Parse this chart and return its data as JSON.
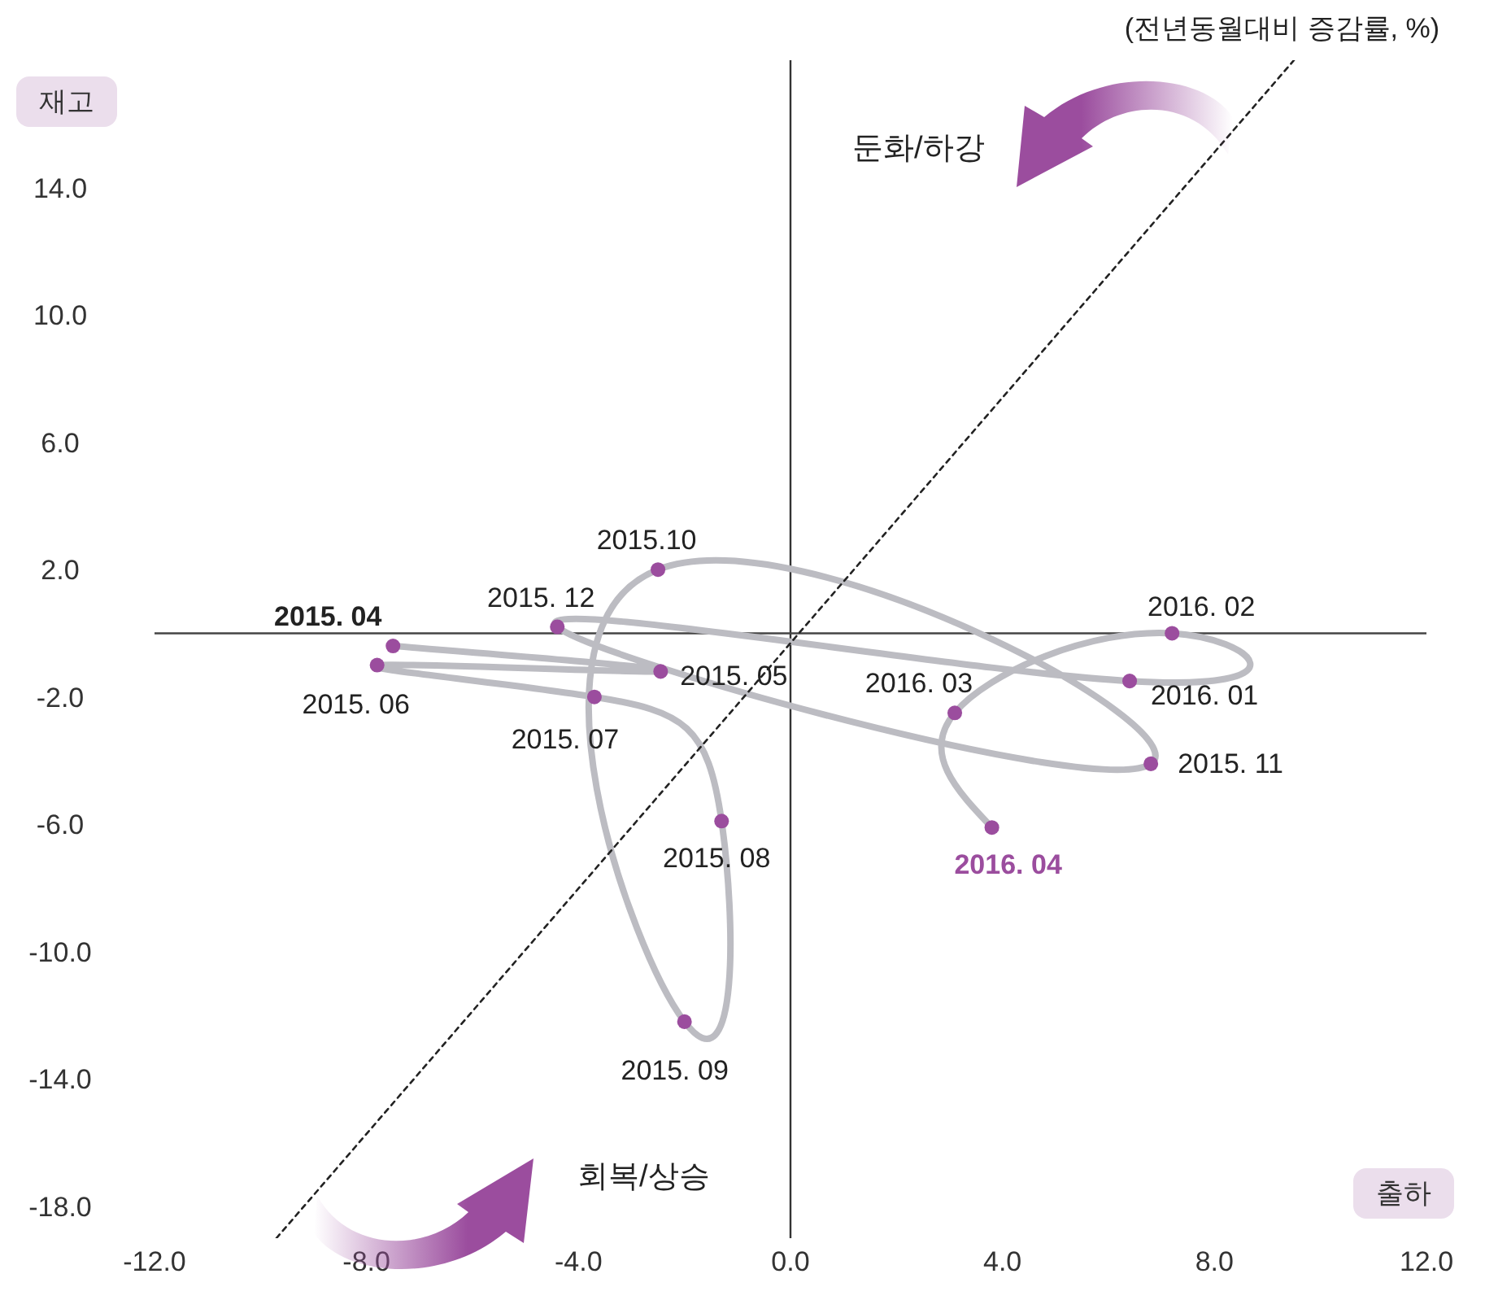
{
  "chart_data": {
    "type": "line",
    "xlabel": "출하",
    "ylabel": "재고",
    "xlim": [
      -12,
      12
    ],
    "xticks": [
      {
        "value": -12,
        "label": "-12.0"
      },
      {
        "value": -8,
        "label": "-8.0"
      },
      {
        "value": -4,
        "label": "-4.0"
      },
      {
        "value": 0,
        "label": "0.0"
      },
      {
        "value": 4,
        "label": "4.0"
      },
      {
        "value": 8,
        "label": "8.0"
      },
      {
        "value": 12,
        "label": "12.0"
      }
    ],
    "ylim": [
      -19,
      18
    ],
    "yticks": [
      {
        "value": -18,
        "label": "-18.0"
      },
      {
        "value": -14,
        "label": "-14.0"
      },
      {
        "value": -10,
        "label": "-10.0"
      },
      {
        "value": -6,
        "label": "-6.0"
      },
      {
        "value": -2,
        "label": "-2.0"
      },
      {
        "value": 2,
        "label": "2.0"
      },
      {
        "value": 6,
        "label": "6.0"
      },
      {
        "value": 10,
        "label": "10.0"
      },
      {
        "value": 14,
        "label": "14.0"
      }
    ],
    "grid": false,
    "series": [
      {
        "type": "line",
        "color": "#bcbcc2",
        "marker": "none",
        "line_style": "solid",
        "x": [
          -7.5,
          -2.45,
          -7.8,
          -3.7,
          -1.3,
          -2.0,
          -2.5,
          6.8,
          -4.4,
          6.4,
          7.2,
          3.1,
          3.8
        ],
        "values": [
          -0.4,
          -1.2,
          -1.0,
          -2.0,
          -5.9,
          -12.2,
          2.0,
          -4.1,
          0.2,
          -1.5,
          0.0,
          -2.5,
          -6.1
        ]
      },
      {
        "type": "scatter",
        "color": "#9b4d9e",
        "marker": "circle",
        "x": [
          -7.5,
          -2.45,
          -7.8,
          -3.7,
          -1.3,
          -2.0,
          -2.5,
          6.8,
          -4.4,
          6.4,
          7.2,
          3.1,
          3.8
        ],
        "values": [
          -0.4,
          -1.2,
          -1.0,
          -2.0,
          -5.9,
          -12.2,
          2.0,
          -4.1,
          0.2,
          -1.5,
          0.0,
          -2.5,
          -6.1
        ]
      },
      {
        "type": "line",
        "color": "#222222",
        "marker": "none",
        "line_style": "dotted",
        "x": [
          -9.7,
          9.5
        ],
        "values": [
          -19,
          18
        ]
      }
    ],
    "ref_lines": [
      {
        "axis": "x",
        "value": 0,
        "color": "#333333"
      },
      {
        "axis": "y",
        "value": 0,
        "color": "#444444"
      }
    ],
    "annotations": [
      "(전년동월대비 증감률, %)",
      "둔화/하강",
      "회복/상승",
      {
        "text": "2015. 04",
        "x": -7.5,
        "y": -0.4
      },
      {
        "text": "2015. 05",
        "x": -2.45,
        "y": -1.2
      },
      {
        "text": "2015. 06",
        "x": -7.8,
        "y": -1.0
      },
      {
        "text": "2015. 07",
        "x": -3.7,
        "y": -2.0
      },
      {
        "text": "2015. 08",
        "x": -1.3,
        "y": -5.9
      },
      {
        "text": "2015. 09",
        "x": -2.0,
        "y": -12.2
      },
      {
        "text": "2015.10",
        "x": -2.5,
        "y": 2.0
      },
      {
        "text": "2015. 11",
        "x": 6.8,
        "y": -4.1
      },
      {
        "text": "2015. 12",
        "x": -4.4,
        "y": 0.2
      },
      {
        "text": "2016. 01",
        "x": 6.4,
        "y": -1.5
      },
      {
        "text": "2016. 02",
        "x": 7.2,
        "y": 0.0
      },
      {
        "text": "2016. 03",
        "x": 3.1,
        "y": -2.5
      },
      {
        "text": "2016. 04",
        "x": 3.8,
        "y": -6.1
      }
    ]
  }
}
